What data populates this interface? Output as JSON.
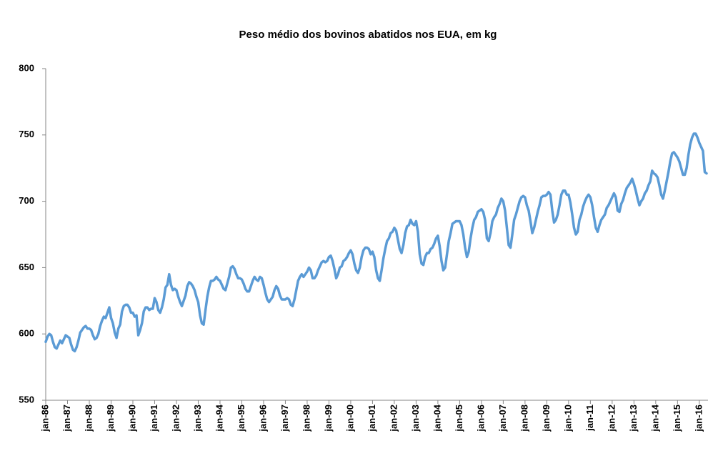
{
  "chart_data": {
    "type": "line",
    "title": "Peso médio dos bovinos abatidos nos EUA, em kg",
    "color": "#5b9bd5",
    "ylim": [
      550,
      800
    ],
    "yticks": [
      550,
      600,
      650,
      700,
      750,
      800
    ],
    "grid": false,
    "categories": [
      "jan-86",
      null,
      null,
      null,
      null,
      null,
      null,
      null,
      null,
      null,
      null,
      null,
      "jan-87",
      null,
      null,
      null,
      null,
      null,
      null,
      null,
      null,
      null,
      null,
      null,
      "jan-88",
      null,
      null,
      null,
      null,
      null,
      null,
      null,
      null,
      null,
      null,
      null,
      "jan-89",
      null,
      null,
      null,
      null,
      null,
      null,
      null,
      null,
      null,
      null,
      null,
      "jan-90",
      null,
      null,
      null,
      null,
      null,
      null,
      null,
      null,
      null,
      null,
      null,
      "jan-91",
      null,
      null,
      null,
      null,
      null,
      null,
      null,
      null,
      null,
      null,
      null,
      "jan-92",
      null,
      null,
      null,
      null,
      null,
      null,
      null,
      null,
      null,
      null,
      null,
      "jan-93",
      null,
      null,
      null,
      null,
      null,
      null,
      null,
      null,
      null,
      null,
      null,
      "jan-94",
      null,
      null,
      null,
      null,
      null,
      null,
      null,
      null,
      null,
      null,
      null,
      "jan-95",
      null,
      null,
      null,
      null,
      null,
      null,
      null,
      null,
      null,
      null,
      null,
      "jan-96",
      null,
      null,
      null,
      null,
      null,
      null,
      null,
      null,
      null,
      null,
      null,
      "jan-97",
      null,
      null,
      null,
      null,
      null,
      null,
      null,
      null,
      null,
      null,
      null,
      "jan-98",
      null,
      null,
      null,
      null,
      null,
      null,
      null,
      null,
      null,
      null,
      null,
      "jan-99",
      null,
      null,
      null,
      null,
      null,
      null,
      null,
      null,
      null,
      null,
      null,
      "jan-00",
      null,
      null,
      null,
      null,
      null,
      null,
      null,
      null,
      null,
      null,
      null,
      "jan-01",
      null,
      null,
      null,
      null,
      null,
      null,
      null,
      null,
      null,
      null,
      null,
      "jan-02",
      null,
      null,
      null,
      null,
      null,
      null,
      null,
      null,
      null,
      null,
      null,
      "jan-03",
      null,
      null,
      null,
      null,
      null,
      null,
      null,
      null,
      null,
      null,
      null,
      "jan-04",
      null,
      null,
      null,
      null,
      null,
      null,
      null,
      null,
      null,
      null,
      null,
      "jan-05",
      null,
      null,
      null,
      null,
      null,
      null,
      null,
      null,
      null,
      null,
      null,
      "jan-06",
      null,
      null,
      null,
      null,
      null,
      null,
      null,
      null,
      null,
      null,
      null,
      "jan-07",
      null,
      null,
      null,
      null,
      null,
      null,
      null,
      null,
      null,
      null,
      null,
      "jan-08",
      null,
      null,
      null,
      null,
      null,
      null,
      null,
      null,
      null,
      null,
      null,
      "jan-09",
      null,
      null,
      null,
      null,
      null,
      null,
      null,
      null,
      null,
      null,
      null,
      "jan-10",
      null,
      null,
      null,
      null,
      null,
      null,
      null,
      null,
      null,
      null,
      null,
      "jan-11",
      null,
      null,
      null,
      null,
      null,
      null,
      null,
      null,
      null,
      null,
      null,
      "jan-12",
      null,
      null,
      null,
      null,
      null,
      null,
      null,
      null,
      null,
      null,
      null,
      "jan-13",
      null,
      null,
      null,
      null,
      null,
      null,
      null,
      null,
      null,
      null,
      null,
      "jan-14",
      null,
      null,
      null,
      null,
      null,
      null,
      null,
      null,
      null,
      null,
      null,
      "jan-15",
      null,
      null,
      null,
      null,
      null,
      null,
      null,
      null,
      null,
      null,
      null,
      "jan-16",
      null,
      null,
      null,
      null
    ],
    "values": [
      594,
      598,
      600,
      599,
      594,
      590,
      589,
      592,
      595,
      593,
      596,
      599,
      598,
      597,
      592,
      588,
      587,
      590,
      595,
      601,
      603,
      605,
      606,
      604,
      604,
      603,
      599,
      596,
      597,
      600,
      606,
      610,
      613,
      612,
      616,
      620,
      612,
      608,
      601,
      597,
      604,
      607,
      617,
      621,
      622,
      622,
      620,
      616,
      616,
      613,
      614,
      599,
      603,
      608,
      617,
      620,
      620,
      618,
      619,
      619,
      627,
      624,
      618,
      616,
      620,
      626,
      635,
      637,
      645,
      637,
      633,
      634,
      633,
      628,
      624,
      621,
      625,
      629,
      636,
      639,
      638,
      636,
      633,
      628,
      624,
      614,
      608,
      607,
      618,
      628,
      635,
      640,
      640,
      641,
      643,
      641,
      640,
      637,
      634,
      633,
      638,
      643,
      650,
      651,
      649,
      645,
      642,
      642,
      641,
      638,
      634,
      632,
      632,
      636,
      640,
      643,
      641,
      640,
      643,
      642,
      637,
      631,
      626,
      624,
      626,
      628,
      633,
      636,
      634,
      629,
      626,
      626,
      626,
      627,
      626,
      622,
      621,
      626,
      633,
      640,
      643,
      645,
      643,
      645,
      647,
      650,
      648,
      642,
      642,
      644,
      648,
      651,
      654,
      655,
      654,
      655,
      658,
      659,
      655,
      649,
      642,
      645,
      650,
      651,
      655,
      656,
      658,
      661,
      663,
      660,
      653,
      648,
      646,
      650,
      658,
      663,
      665,
      665,
      664,
      660,
      662,
      658,
      648,
      642,
      640,
      648,
      657,
      664,
      670,
      672,
      676,
      677,
      680,
      678,
      671,
      664,
      661,
      667,
      676,
      681,
      682,
      686,
      683,
      682,
      685,
      677,
      660,
      653,
      652,
      658,
      661,
      661,
      664,
      665,
      668,
      672,
      674,
      666,
      655,
      648,
      650,
      660,
      670,
      676,
      683,
      684,
      685,
      685,
      685,
      682,
      675,
      665,
      658,
      662,
      672,
      680,
      686,
      688,
      692,
      693,
      694,
      692,
      686,
      672,
      670,
      676,
      685,
      688,
      690,
      695,
      698,
      702,
      700,
      693,
      680,
      667,
      665,
      675,
      686,
      690,
      695,
      700,
      703,
      704,
      703,
      697,
      693,
      685,
      676,
      680,
      686,
      692,
      697,
      703,
      704,
      704,
      705,
      707,
      705,
      693,
      684,
      686,
      690,
      697,
      705,
      708,
      708,
      705,
      705,
      699,
      690,
      680,
      675,
      677,
      686,
      690,
      696,
      700,
      703,
      705,
      703,
      697,
      688,
      680,
      677,
      682,
      686,
      688,
      690,
      695,
      697,
      700,
      703,
      706,
      703,
      693,
      692,
      698,
      701,
      706,
      710,
      712,
      714,
      717,
      713,
      708,
      702,
      697,
      700,
      702,
      706,
      708,
      712,
      715,
      723,
      721,
      720,
      718,
      712,
      705,
      702,
      708,
      715,
      722,
      730,
      736,
      737,
      735,
      733,
      730,
      725,
      720,
      720,
      725,
      735,
      743,
      748,
      751,
      751,
      748,
      744,
      741,
      738,
      722,
      721
    ]
  }
}
